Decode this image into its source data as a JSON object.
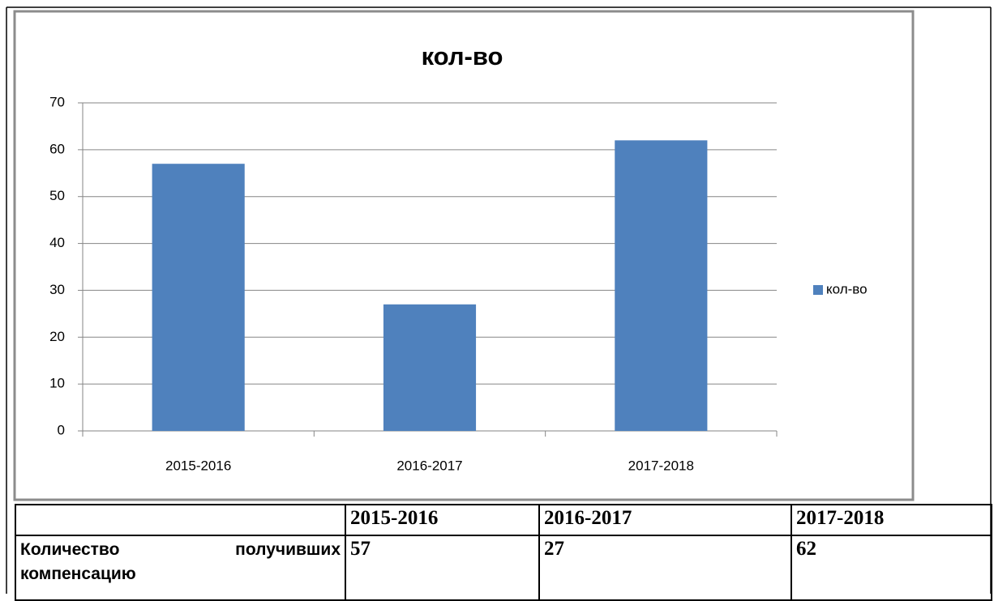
{
  "chart_data": {
    "type": "bar",
    "title": "кол-во",
    "categories": [
      "2015-2016",
      "2016-2017",
      "2017-2018"
    ],
    "series": [
      {
        "name": "кол-во",
        "color": "#4f81bd",
        "values": [
          57,
          27,
          62
        ]
      }
    ],
    "ylim": [
      0,
      70
    ],
    "yticks": [
      0,
      10,
      20,
      30,
      40,
      50,
      60,
      70
    ],
    "grid": true,
    "legend": "right"
  },
  "table": {
    "header": [
      "2015-2016",
      "2016-2017",
      "2017-2018"
    ],
    "rows": [
      {
        "label": "Количество получивших компенсацию",
        "cells": [
          "57",
          "27",
          "62"
        ]
      }
    ]
  }
}
